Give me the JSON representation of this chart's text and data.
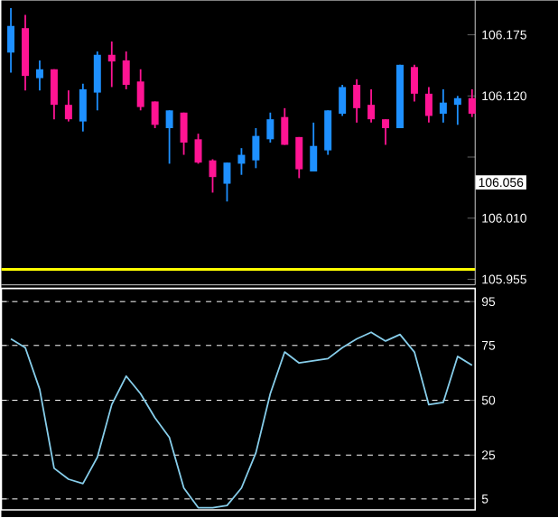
{
  "chart_data": [
    {
      "type": "candlestick",
      "categories": [
        null,
        null,
        null,
        null,
        null,
        null,
        null,
        null,
        null,
        null,
        null,
        null,
        null,
        null,
        null,
        null,
        null,
        null,
        null,
        null,
        null,
        null,
        null,
        null,
        null,
        null,
        null,
        null,
        null,
        null,
        null,
        null,
        null
      ],
      "ohlc": [
        [
          106.159,
          106.199,
          106.141,
          106.183
        ],
        [
          106.181,
          106.193,
          106.125,
          106.138
        ],
        [
          106.136,
          106.152,
          106.125,
          106.144
        ],
        [
          106.144,
          106.144,
          106.099,
          106.112
        ],
        [
          106.112,
          106.125,
          106.097,
          106.099
        ],
        [
          106.097,
          106.131,
          106.088,
          106.126
        ],
        [
          106.123,
          106.16,
          106.107,
          106.157
        ],
        [
          106.157,
          106.169,
          106.128,
          106.151
        ],
        [
          106.152,
          106.16,
          106.126,
          106.13
        ],
        [
          106.133,
          106.144,
          106.107,
          106.11
        ],
        [
          106.115,
          106.115,
          106.091,
          106.094
        ],
        [
          106.091,
          106.107,
          106.059,
          106.107
        ],
        [
          106.105,
          106.105,
          106.067,
          106.078
        ],
        [
          106.081,
          106.086,
          106.059,
          106.06
        ],
        [
          106.062,
          106.063,
          106.033,
          106.047
        ],
        [
          106.041,
          106.06,
          106.025,
          106.06
        ],
        [
          106.059,
          106.073,
          106.049,
          106.067
        ],
        [
          106.062,
          106.091,
          106.055,
          106.084
        ],
        [
          106.081,
          106.105,
          106.078,
          106.099
        ],
        [
          106.101,
          106.109,
          106.076,
          106.076
        ],
        [
          106.083,
          106.083,
          106.046,
          106.054
        ],
        [
          106.052,
          106.096,
          106.052,
          106.075
        ],
        [
          106.071,
          106.107,
          106.067,
          106.107
        ],
        [
          106.104,
          106.13,
          106.102,
          106.128
        ],
        [
          106.13,
          106.135,
          106.096,
          106.109
        ],
        [
          106.112,
          106.126,
          106.096,
          106.099
        ],
        [
          106.099,
          106.099,
          106.076,
          106.091
        ],
        [
          106.091,
          106.148,
          106.091,
          106.148
        ],
        [
          106.146,
          106.148,
          106.115,
          106.122
        ],
        [
          106.122,
          106.128,
          106.096,
          106.102
        ],
        [
          106.104,
          106.126,
          106.096,
          106.114
        ],
        [
          106.112,
          106.12,
          106.094,
          106.118
        ],
        [
          106.118,
          106.126,
          106.101,
          106.104
        ]
      ],
      "colors": [
        "#1e90ff",
        "#ff1493",
        "#1e90ff",
        "#ff1493",
        "#ff1493",
        "#1e90ff",
        "#1e90ff",
        "#ff1493",
        "#ff1493",
        "#ff1493",
        "#ff1493",
        "#1e90ff",
        "#ff1493",
        "#ff1493",
        "#ff1493",
        "#1e90ff",
        "#1e90ff",
        "#1e90ff",
        "#1e90ff",
        "#ff1493",
        "#ff1493",
        "#1e90ff",
        "#1e90ff",
        "#1e90ff",
        "#ff1493",
        "#ff1493",
        "#ff1493",
        "#1e90ff",
        "#ff1493",
        "#ff1493",
        "#1e90ff",
        "#1e90ff",
        "#ff1493"
      ],
      "ylim": [
        105.95,
        106.206
      ],
      "yticks": [
        105.955,
        {
          "value": 106.01,
          "label": "106.010"
        },
        {
          "value": 106.065,
          "label": null
        },
        {
          "value": 106.12,
          "label": "106.120"
        },
        106.175
      ],
      "tick_labels": "y",
      "ref_lines": [
        {
          "axis": "y",
          "value": 105.964,
          "color": "#ffff00"
        }
      ],
      "annotations": [
        "106.056"
      ]
    },
    {
      "type": "line",
      "categories": [
        null,
        null,
        null,
        null,
        null,
        null,
        null,
        null,
        null,
        null,
        null,
        null,
        null,
        null,
        null,
        null,
        null,
        null,
        null,
        null,
        null,
        null,
        null,
        null,
        null,
        null,
        null,
        null,
        null,
        null,
        null,
        null,
        null
      ],
      "series": [
        {
          "color": "#87ceeb",
          "values": [
            78,
            74,
            55,
            19,
            14,
            12,
            24,
            48,
            61,
            53,
            42,
            33,
            10,
            1,
            1,
            2,
            10,
            26,
            53,
            72,
            67,
            68,
            69,
            74,
            78,
            81,
            77,
            80,
            72,
            48,
            49,
            70,
            66
          ]
        }
      ],
      "ylim": [
        0,
        101
      ],
      "yticks": [
        5,
        25,
        50,
        75,
        95
      ],
      "grid": "y",
      "tick_labels": "y"
    }
  ]
}
